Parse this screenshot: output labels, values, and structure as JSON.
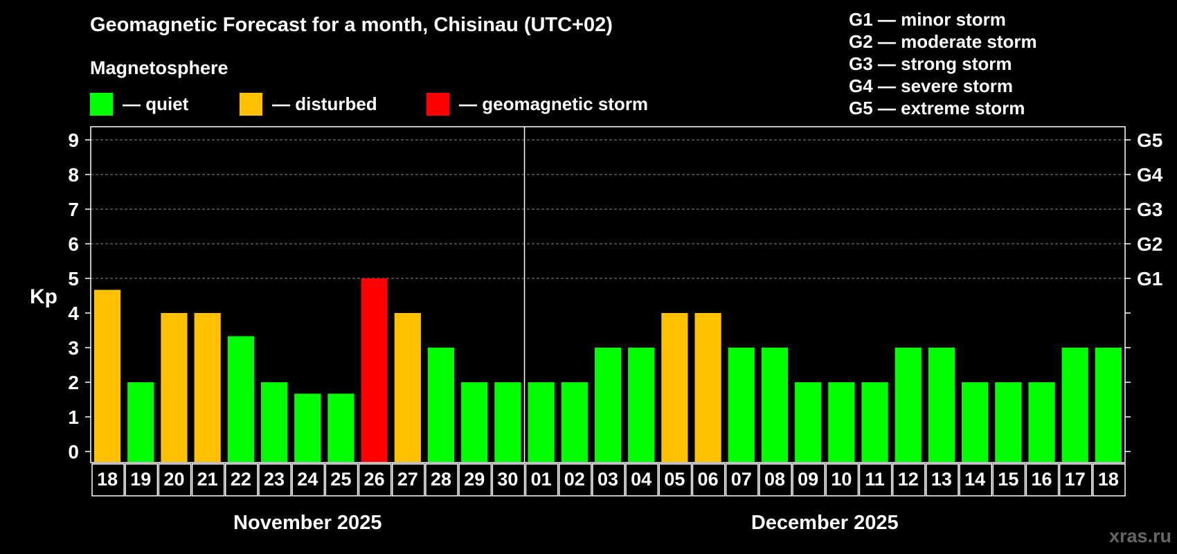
{
  "watermark": "xras.ru",
  "legend": {
    "header": "Magnetosphere",
    "items": [
      {
        "label": "— quiet",
        "color": "#00ff00"
      },
      {
        "label": "— disturbed",
        "color": "#ffc000"
      },
      {
        "label": "— geomagnetic storm",
        "color": "#ff0000"
      }
    ]
  },
  "storm_scale": [
    "G1 — minor storm",
    "G2 — moderate storm",
    "G3 — strong storm",
    "G4 — severe storm",
    "G5 — extreme storm"
  ],
  "chart_data": {
    "type": "bar",
    "title": "Geomagnetic Forecast for a month, Chisinau (UTC+02)",
    "ylabel": "Kp",
    "ylim": [
      0,
      9
    ],
    "yticks": [
      "0",
      "1",
      "2",
      "3",
      "4",
      "5",
      "6",
      "7",
      "8",
      "9"
    ],
    "right_axis_labels": [
      {
        "value": 5,
        "label": "G1"
      },
      {
        "value": 6,
        "label": "G2"
      },
      {
        "value": 7,
        "label": "G3"
      },
      {
        "value": 8,
        "label": "G4"
      },
      {
        "value": 9,
        "label": "G5"
      }
    ],
    "grid": "dashed horizontal at Kp 5-9",
    "months": [
      {
        "label": "November 2025",
        "start_index": 0,
        "count": 13
      },
      {
        "label": "December 2025",
        "start_index": 13,
        "count": 18
      }
    ],
    "categories": [
      "18",
      "19",
      "20",
      "21",
      "22",
      "23",
      "24",
      "25",
      "26",
      "27",
      "28",
      "29",
      "30",
      "01",
      "02",
      "03",
      "04",
      "05",
      "06",
      "07",
      "08",
      "09",
      "10",
      "11",
      "12",
      "13",
      "14",
      "15",
      "16",
      "17",
      "18"
    ],
    "values": [
      4.67,
      2,
      4,
      4,
      3.33,
      2,
      1.67,
      1.67,
      5,
      4,
      3,
      2,
      2,
      2,
      2,
      3,
      3,
      4,
      4,
      3,
      3,
      2,
      2,
      2,
      3,
      3,
      2,
      2,
      2,
      3,
      3
    ],
    "status": [
      "disturbed",
      "quiet",
      "disturbed",
      "disturbed",
      "quiet",
      "quiet",
      "quiet",
      "quiet",
      "storm",
      "disturbed",
      "quiet",
      "quiet",
      "quiet",
      "quiet",
      "quiet",
      "quiet",
      "quiet",
      "disturbed",
      "disturbed",
      "quiet",
      "quiet",
      "quiet",
      "quiet",
      "quiet",
      "quiet",
      "quiet",
      "quiet",
      "quiet",
      "quiet",
      "quiet",
      "quiet"
    ],
    "colors": {
      "quiet": "#00ff00",
      "disturbed": "#ffc000",
      "storm": "#ff0000"
    }
  }
}
